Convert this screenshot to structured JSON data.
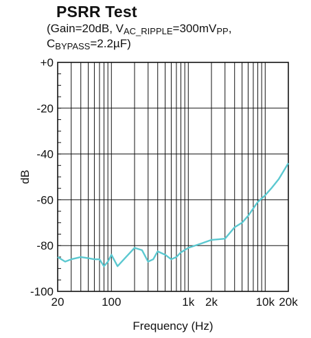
{
  "title": "PSRR Test",
  "subtitle": {
    "line1_prefix": "(Gain=20dB, V",
    "line1_sub1": "AC_RIPPLE",
    "line1_mid": "=300mV",
    "line1_sub2": "PP",
    "line1_suffix": ",",
    "line2_prefix": "C",
    "line2_sub": "BYPASS",
    "line2_suffix": "=2.2µF)"
  },
  "chart_data": {
    "type": "line",
    "title": "PSRR Test",
    "xlabel": "Frequency (Hz)",
    "ylabel": "dB",
    "x_scale": "log",
    "xlim": [
      20,
      20000
    ],
    "ylim": [
      -100,
      0
    ],
    "grid": true,
    "line_color": "#5bc8d0",
    "x_ticks": [
      {
        "value": 20,
        "label": "20"
      },
      {
        "value": 100,
        "label": "100"
      },
      {
        "value": 1000,
        "label": "1k"
      },
      {
        "value": 2000,
        "label": "2k"
      },
      {
        "value": 10000,
        "label": "10k"
      },
      {
        "value": 20000,
        "label": "20k"
      }
    ],
    "y_ticks": [
      {
        "value": 0,
        "label": "+0"
      },
      {
        "value": -20,
        "label": "-20"
      },
      {
        "value": -40,
        "label": "-40"
      },
      {
        "value": -60,
        "label": "-60"
      },
      {
        "value": -80,
        "label": "-80"
      },
      {
        "value": -100,
        "label": "-100"
      }
    ],
    "series": [
      {
        "x": [
          20,
          25,
          30,
          40,
          50,
          60,
          70,
          80,
          90,
          100,
          120,
          150,
          200,
          250,
          300,
          350,
          400,
          500,
          600,
          700,
          800,
          1000,
          1500,
          2000,
          3000,
          4000,
          5000,
          6000,
          8000,
          10000,
          12000,
          15000,
          20000
        ],
        "y": [
          -85,
          -87,
          -86,
          -85,
          -85.5,
          -86,
          -86,
          -89,
          -87,
          -84,
          -89,
          -85.5,
          -81,
          -82,
          -87,
          -86,
          -82.5,
          -84,
          -86,
          -85,
          -83,
          -81,
          -79,
          -77.5,
          -77,
          -72,
          -70,
          -67,
          -61,
          -58,
          -55,
          -51,
          -44
        ]
      }
    ]
  }
}
